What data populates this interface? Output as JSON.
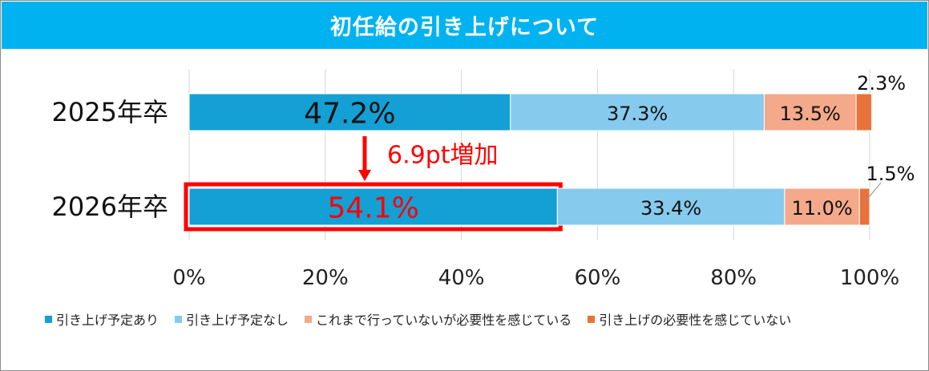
{
  "header": {
    "title": "初任給の引き上げについて"
  },
  "annotation": {
    "text": "6.9pt増加",
    "color": "#ff0000"
  },
  "colors": {
    "title_bg": "#00b3f0",
    "highlight_box": "#ff0000"
  },
  "chart_data": {
    "type": "bar",
    "orientation": "horizontal",
    "stacked": true,
    "categories": [
      "2025年卒",
      "2026年卒"
    ],
    "series": [
      {
        "name": "引き上げ予定あり",
        "color": "#149fd5",
        "values": [
          47.2,
          54.1
        ],
        "labels": [
          "47.2%",
          "54.1%"
        ]
      },
      {
        "name": "引き上げ予定なし",
        "color": "#86caed",
        "values": [
          37.3,
          33.4
        ],
        "labels": [
          "37.3%",
          "33.4%"
        ]
      },
      {
        "name": "これまで行っていないが必要性を感じている",
        "color": "#f3a98a",
        "values": [
          13.5,
          11.0
        ],
        "labels": [
          "13.5%",
          "11.0%"
        ]
      },
      {
        "name": "引き上げの必要性を感じていない",
        "color": "#e8733a",
        "values": [
          2.3,
          1.5
        ],
        "labels": [
          "2.3%",
          "1.5%"
        ]
      }
    ],
    "xlim": [
      0,
      100
    ],
    "xticks": [
      "0%",
      "20%",
      "40%",
      "60%",
      "80%",
      "100%"
    ],
    "grid": true,
    "legend_position": "bottom",
    "highlight": {
      "category": "2026年卒",
      "series": "引き上げ予定あり"
    }
  }
}
